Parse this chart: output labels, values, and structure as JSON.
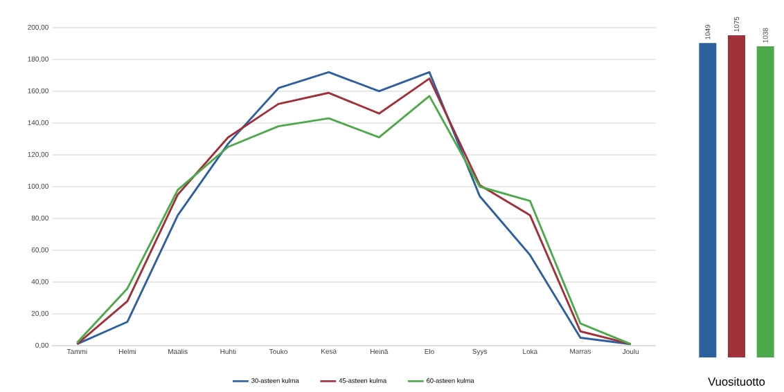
{
  "chart_data": [
    {
      "type": "line",
      "categories": [
        "Tammi",
        "Helmi",
        "Maalis",
        "Huhti",
        "Touko",
        "Kesä",
        "Heinä",
        "Elo",
        "Syys",
        "Loka",
        "Marras",
        "Joulu"
      ],
      "series": [
        {
          "name": "30-asteen kulma",
          "color": "#2e5f9f",
          "values": [
            1,
            15,
            82,
            127,
            162,
            172,
            160,
            172,
            94,
            57,
            5,
            1
          ]
        },
        {
          "name": "45-asteen kulma",
          "color": "#a0303a",
          "values": [
            1,
            28,
            95,
            131,
            152,
            159,
            146,
            168,
            101,
            82,
            9,
            1
          ]
        },
        {
          "name": "60-asteen kulma",
          "color": "#4ea94b",
          "values": [
            2,
            36,
            98,
            125,
            138,
            143,
            131,
            157,
            100,
            91,
            14,
            1
          ]
        }
      ],
      "ylim": [
        0,
        200
      ],
      "yticks": [
        {
          "value": 0,
          "label": "0,00"
        },
        {
          "value": 20,
          "label": "20,00"
        },
        {
          "value": 40,
          "label": "40,00"
        },
        {
          "value": 60,
          "label": "60,00"
        },
        {
          "value": 80,
          "label": "80,00"
        },
        {
          "value": 100,
          "label": "100,00"
        },
        {
          "value": 120,
          "label": "120,00"
        },
        {
          "value": 140,
          "label": "140,00"
        },
        {
          "value": 160,
          "label": "160,00"
        },
        {
          "value": 180,
          "label": "180,00"
        },
        {
          "value": 200,
          "label": "200,00"
        }
      ],
      "grid": "y",
      "legend": "bottom",
      "marker": "none",
      "line_style": "solid"
    },
    {
      "type": "bar",
      "categories": [
        null,
        null,
        null
      ],
      "values": [
        1049,
        1075,
        1038
      ],
      "colors": [
        "#2e5f9f",
        "#a0303a",
        "#4ea94b"
      ],
      "data_labels": true,
      "xlabel": "Vuosituotto"
    }
  ]
}
